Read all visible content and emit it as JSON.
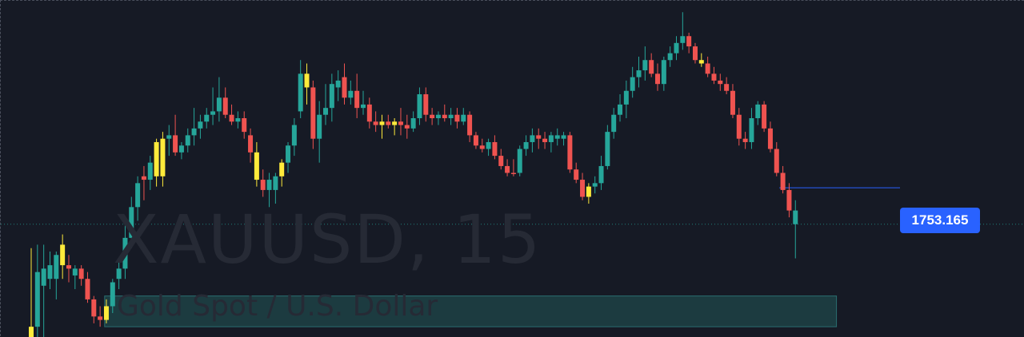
{
  "watermark": {
    "symbol": "XAUUSD, 15",
    "name": "Gold Spot / U.S. Dollar"
  },
  "price_label": "1753.165",
  "colors": {
    "background": "#161a25",
    "up": "#26a69a",
    "down": "#ef5350",
    "highlight": "#ffeb3b",
    "price_line": "#2962ff",
    "zone_fill": "#1c3b40",
    "zone_stroke": "#2a6e70"
  },
  "chart_data": {
    "type": "candlestick",
    "price_label": 1753.165,
    "ylim": [
      1748.8,
      1758.4
    ],
    "candles": [
      {
        "o": 1748.6,
        "h": 1751.4,
        "l": 1748.4,
        "c": 1749.1,
        "col": "highlight"
      },
      {
        "o": 1749.1,
        "h": 1751.5,
        "l": 1748.5,
        "c": 1750.7,
        "col": "up"
      },
      {
        "o": 1750.3,
        "h": 1751.5,
        "l": 1748.8,
        "c": 1750.8,
        "col": "up"
      },
      {
        "o": 1750.5,
        "h": 1751.3,
        "l": 1750.2,
        "c": 1750.9,
        "col": "up"
      },
      {
        "o": 1750.5,
        "h": 1751.3,
        "l": 1749.9,
        "c": 1751.2,
        "col": "up"
      },
      {
        "o": 1751.5,
        "h": 1751.8,
        "l": 1750.5,
        "c": 1750.9,
        "col": "highlight"
      },
      {
        "o": 1750.9,
        "h": 1751.2,
        "l": 1750.4,
        "c": 1750.8,
        "col": "down"
      },
      {
        "o": 1750.6,
        "h": 1750.9,
        "l": 1750.2,
        "c": 1750.8,
        "col": "up"
      },
      {
        "o": 1750.8,
        "h": 1750.9,
        "l": 1750.3,
        "c": 1750.5,
        "col": "down"
      },
      {
        "o": 1750.5,
        "h": 1750.7,
        "l": 1749.8,
        "c": 1749.9,
        "col": "down"
      },
      {
        "o": 1749.9,
        "h": 1750.0,
        "l": 1749.2,
        "c": 1749.4,
        "col": "down"
      },
      {
        "o": 1749.4,
        "h": 1749.7,
        "l": 1749.1,
        "c": 1749.3,
        "col": "down"
      },
      {
        "o": 1749.3,
        "h": 1749.9,
        "l": 1749.2,
        "c": 1749.7,
        "col": "highlight"
      },
      {
        "o": 1749.7,
        "h": 1750.5,
        "l": 1749.5,
        "c": 1750.4,
        "col": "up"
      },
      {
        "o": 1750.5,
        "h": 1751.1,
        "l": 1750.2,
        "c": 1750.8,
        "col": "up"
      },
      {
        "o": 1750.8,
        "h": 1752.1,
        "l": 1750.5,
        "c": 1751.7,
        "col": "up"
      },
      {
        "o": 1751.7,
        "h": 1752.9,
        "l": 1751.4,
        "c": 1752.6,
        "col": "up"
      },
      {
        "o": 1752.6,
        "h": 1753.5,
        "l": 1752.2,
        "c": 1753.3,
        "col": "up"
      },
      {
        "o": 1753.5,
        "h": 1753.8,
        "l": 1752.8,
        "c": 1753.4,
        "col": "down"
      },
      {
        "o": 1753.4,
        "h": 1754.1,
        "l": 1753.1,
        "c": 1753.9,
        "col": "up"
      },
      {
        "o": 1753.5,
        "h": 1754.6,
        "l": 1753.2,
        "c": 1754.5,
        "col": "highlight"
      },
      {
        "o": 1753.5,
        "h": 1754.8,
        "l": 1753.2,
        "c": 1754.6,
        "col": "highlight"
      },
      {
        "o": 1754.6,
        "h": 1755.0,
        "l": 1754.1,
        "c": 1754.7,
        "col": "up"
      },
      {
        "o": 1754.7,
        "h": 1755.3,
        "l": 1754.1,
        "c": 1754.2,
        "col": "down"
      },
      {
        "o": 1754.2,
        "h": 1754.5,
        "l": 1754.0,
        "c": 1754.4,
        "col": "up"
      },
      {
        "o": 1754.4,
        "h": 1754.9,
        "l": 1754.2,
        "c": 1754.7,
        "col": "up"
      },
      {
        "o": 1754.7,
        "h": 1755.5,
        "l": 1754.4,
        "c": 1754.9,
        "col": "up"
      },
      {
        "o": 1754.9,
        "h": 1755.3,
        "l": 1754.6,
        "c": 1755.1,
        "col": "up"
      },
      {
        "o": 1755.1,
        "h": 1755.5,
        "l": 1754.9,
        "c": 1755.3,
        "col": "up"
      },
      {
        "o": 1755.3,
        "h": 1756.1,
        "l": 1755.0,
        "c": 1755.4,
        "col": "up"
      },
      {
        "o": 1755.4,
        "h": 1756.4,
        "l": 1755.1,
        "c": 1755.8,
        "col": "up"
      },
      {
        "o": 1755.8,
        "h": 1756.1,
        "l": 1755.2,
        "c": 1755.3,
        "col": "down"
      },
      {
        "o": 1755.3,
        "h": 1755.6,
        "l": 1755.0,
        "c": 1755.1,
        "col": "down"
      },
      {
        "o": 1755.1,
        "h": 1755.4,
        "l": 1754.9,
        "c": 1755.2,
        "col": "up"
      },
      {
        "o": 1755.2,
        "h": 1755.4,
        "l": 1754.6,
        "c": 1754.8,
        "col": "down"
      },
      {
        "o": 1754.7,
        "h": 1754.9,
        "l": 1753.9,
        "c": 1754.2,
        "col": "down"
      },
      {
        "o": 1754.2,
        "h": 1754.5,
        "l": 1753.2,
        "c": 1753.4,
        "col": "highlight"
      },
      {
        "o": 1753.4,
        "h": 1753.7,
        "l": 1752.9,
        "c": 1753.1,
        "col": "down"
      },
      {
        "o": 1753.1,
        "h": 1753.6,
        "l": 1752.6,
        "c": 1753.4,
        "col": "up"
      },
      {
        "o": 1753.1,
        "h": 1753.6,
        "l": 1752.7,
        "c": 1753.5,
        "col": "up"
      },
      {
        "o": 1753.5,
        "h": 1754.0,
        "l": 1753.2,
        "c": 1753.9,
        "col": "highlight"
      },
      {
        "o": 1753.9,
        "h": 1754.5,
        "l": 1753.6,
        "c": 1754.4,
        "col": "up"
      },
      {
        "o": 1754.4,
        "h": 1755.2,
        "l": 1754.1,
        "c": 1755.0,
        "col": "up"
      },
      {
        "o": 1756.5,
        "h": 1756.9,
        "l": 1755.2,
        "c": 1755.4,
        "col": "up"
      },
      {
        "o": 1756.5,
        "h": 1756.8,
        "l": 1755.6,
        "c": 1756.1,
        "col": "highlight"
      },
      {
        "o": 1756.1,
        "h": 1756.3,
        "l": 1754.3,
        "c": 1754.6,
        "col": "down"
      },
      {
        "o": 1754.6,
        "h": 1755.7,
        "l": 1753.9,
        "c": 1755.3,
        "col": "up"
      },
      {
        "o": 1755.3,
        "h": 1756.2,
        "l": 1755.0,
        "c": 1755.5,
        "col": "up"
      },
      {
        "o": 1755.5,
        "h": 1756.5,
        "l": 1755.1,
        "c": 1756.2,
        "col": "up"
      },
      {
        "o": 1756.1,
        "h": 1756.6,
        "l": 1755.7,
        "c": 1756.3,
        "col": "up"
      },
      {
        "o": 1756.4,
        "h": 1756.8,
        "l": 1755.6,
        "c": 1755.8,
        "col": "down"
      },
      {
        "o": 1755.8,
        "h": 1756.3,
        "l": 1755.6,
        "c": 1756.0,
        "col": "up"
      },
      {
        "o": 1756.0,
        "h": 1756.5,
        "l": 1755.2,
        "c": 1755.5,
        "col": "down"
      },
      {
        "o": 1755.5,
        "h": 1756.0,
        "l": 1755.3,
        "c": 1755.6,
        "col": "up"
      },
      {
        "o": 1755.6,
        "h": 1755.8,
        "l": 1754.9,
        "c": 1755.1,
        "col": "down"
      },
      {
        "o": 1755.1,
        "h": 1755.4,
        "l": 1754.8,
        "c": 1755.0,
        "col": "down"
      },
      {
        "o": 1755.0,
        "h": 1755.3,
        "l": 1754.6,
        "c": 1755.1,
        "col": "highlight"
      },
      {
        "o": 1755.1,
        "h": 1755.3,
        "l": 1754.9,
        "c": 1755.0,
        "col": "down"
      },
      {
        "o": 1755.0,
        "h": 1755.2,
        "l": 1754.7,
        "c": 1755.1,
        "col": "highlight"
      },
      {
        "o": 1755.1,
        "h": 1755.5,
        "l": 1754.7,
        "c": 1755.0,
        "col": "down"
      },
      {
        "o": 1755.0,
        "h": 1755.3,
        "l": 1754.6,
        "c": 1754.9,
        "col": "down"
      },
      {
        "o": 1754.9,
        "h": 1755.4,
        "l": 1754.8,
        "c": 1755.2,
        "col": "up"
      },
      {
        "o": 1755.2,
        "h": 1756.1,
        "l": 1755.0,
        "c": 1755.9,
        "col": "up"
      },
      {
        "o": 1755.9,
        "h": 1756.1,
        "l": 1755.1,
        "c": 1755.3,
        "col": "down"
      },
      {
        "o": 1755.3,
        "h": 1755.5,
        "l": 1755.0,
        "c": 1755.2,
        "col": "down"
      },
      {
        "o": 1755.2,
        "h": 1755.4,
        "l": 1755.0,
        "c": 1755.3,
        "col": "up"
      },
      {
        "o": 1755.3,
        "h": 1755.6,
        "l": 1755.1,
        "c": 1755.2,
        "col": "down"
      },
      {
        "o": 1755.2,
        "h": 1755.5,
        "l": 1755.0,
        "c": 1755.3,
        "col": "up"
      },
      {
        "o": 1755.3,
        "h": 1755.5,
        "l": 1754.9,
        "c": 1755.1,
        "col": "down"
      },
      {
        "o": 1755.1,
        "h": 1755.5,
        "l": 1755.0,
        "c": 1755.3,
        "col": "up"
      },
      {
        "o": 1755.3,
        "h": 1755.4,
        "l": 1754.5,
        "c": 1754.7,
        "col": "down"
      },
      {
        "o": 1754.7,
        "h": 1754.8,
        "l": 1754.3,
        "c": 1754.4,
        "col": "down"
      },
      {
        "o": 1754.4,
        "h": 1754.6,
        "l": 1754.2,
        "c": 1754.3,
        "col": "down"
      },
      {
        "o": 1754.3,
        "h": 1754.6,
        "l": 1754.1,
        "c": 1754.5,
        "col": "up"
      },
      {
        "o": 1754.5,
        "h": 1754.7,
        "l": 1754.0,
        "c": 1754.1,
        "col": "down"
      },
      {
        "o": 1754.1,
        "h": 1754.3,
        "l": 1753.7,
        "c": 1753.8,
        "col": "down"
      },
      {
        "o": 1753.8,
        "h": 1754.0,
        "l": 1753.5,
        "c": 1753.6,
        "col": "down"
      },
      {
        "o": 1753.6,
        "h": 1754.0,
        "l": 1753.5,
        "c": 1753.6,
        "col": "down"
      },
      {
        "o": 1753.6,
        "h": 1754.4,
        "l": 1753.5,
        "c": 1754.3,
        "col": "up"
      },
      {
        "o": 1754.3,
        "h": 1754.7,
        "l": 1754.1,
        "c": 1754.5,
        "col": "up"
      },
      {
        "o": 1754.5,
        "h": 1754.9,
        "l": 1754.2,
        "c": 1754.7,
        "col": "up"
      },
      {
        "o": 1754.7,
        "h": 1754.9,
        "l": 1754.3,
        "c": 1754.6,
        "col": "down"
      },
      {
        "o": 1754.6,
        "h": 1754.8,
        "l": 1754.3,
        "c": 1754.5,
        "col": "down"
      },
      {
        "o": 1754.5,
        "h": 1754.8,
        "l": 1754.2,
        "c": 1754.7,
        "col": "up"
      },
      {
        "o": 1754.7,
        "h": 1754.9,
        "l": 1754.4,
        "c": 1754.6,
        "col": "up"
      },
      {
        "o": 1754.6,
        "h": 1754.8,
        "l": 1754.4,
        "c": 1754.7,
        "col": "up"
      },
      {
        "o": 1754.7,
        "h": 1754.8,
        "l": 1753.6,
        "c": 1753.7,
        "col": "down"
      },
      {
        "o": 1753.7,
        "h": 1753.9,
        "l": 1753.3,
        "c": 1753.4,
        "col": "down"
      },
      {
        "o": 1753.4,
        "h": 1753.6,
        "l": 1752.8,
        "c": 1752.9,
        "col": "down"
      },
      {
        "o": 1752.9,
        "h": 1753.3,
        "l": 1752.7,
        "c": 1753.2,
        "col": "highlight"
      },
      {
        "o": 1753.2,
        "h": 1753.5,
        "l": 1753.0,
        "c": 1753.3,
        "col": "up"
      },
      {
        "o": 1753.3,
        "h": 1754.1,
        "l": 1753.1,
        "c": 1753.8,
        "col": "up"
      },
      {
        "o": 1753.8,
        "h": 1755.0,
        "l": 1753.7,
        "c": 1754.8,
        "col": "up"
      },
      {
        "o": 1754.8,
        "h": 1755.5,
        "l": 1754.6,
        "c": 1755.3,
        "col": "up"
      },
      {
        "o": 1755.3,
        "h": 1755.9,
        "l": 1755.1,
        "c": 1755.6,
        "col": "up"
      },
      {
        "o": 1755.6,
        "h": 1756.3,
        "l": 1755.2,
        "c": 1756.0,
        "col": "up"
      },
      {
        "o": 1756.0,
        "h": 1756.7,
        "l": 1755.8,
        "c": 1756.4,
        "col": "up"
      },
      {
        "o": 1756.4,
        "h": 1757.0,
        "l": 1756.1,
        "c": 1756.6,
        "col": "up"
      },
      {
        "o": 1756.6,
        "h": 1757.3,
        "l": 1756.3,
        "c": 1756.9,
        "col": "up"
      },
      {
        "o": 1756.9,
        "h": 1757.1,
        "l": 1756.4,
        "c": 1756.5,
        "col": "down"
      },
      {
        "o": 1756.5,
        "h": 1756.8,
        "l": 1756.0,
        "c": 1756.2,
        "col": "down"
      },
      {
        "o": 1756.2,
        "h": 1757.0,
        "l": 1756.0,
        "c": 1756.9,
        "col": "up"
      },
      {
        "o": 1756.9,
        "h": 1757.3,
        "l": 1756.7,
        "c": 1757.1,
        "col": "up"
      },
      {
        "o": 1757.1,
        "h": 1757.6,
        "l": 1756.9,
        "c": 1757.4,
        "col": "up"
      },
      {
        "o": 1757.4,
        "h": 1758.3,
        "l": 1757.2,
        "c": 1757.6,
        "col": "up"
      },
      {
        "o": 1757.6,
        "h": 1757.7,
        "l": 1757.1,
        "c": 1757.3,
        "col": "down"
      },
      {
        "o": 1757.3,
        "h": 1757.4,
        "l": 1756.8,
        "c": 1756.9,
        "col": "down"
      },
      {
        "o": 1756.9,
        "h": 1757.1,
        "l": 1756.7,
        "c": 1756.8,
        "col": "highlight"
      },
      {
        "o": 1756.8,
        "h": 1757.0,
        "l": 1756.4,
        "c": 1756.5,
        "col": "down"
      },
      {
        "o": 1756.5,
        "h": 1756.7,
        "l": 1756.2,
        "c": 1756.3,
        "col": "down"
      },
      {
        "o": 1756.3,
        "h": 1756.5,
        "l": 1756.0,
        "c": 1756.2,
        "col": "down"
      },
      {
        "o": 1756.2,
        "h": 1756.4,
        "l": 1755.9,
        "c": 1756.0,
        "col": "down"
      },
      {
        "o": 1756.0,
        "h": 1756.2,
        "l": 1755.2,
        "c": 1755.3,
        "col": "down"
      },
      {
        "o": 1755.3,
        "h": 1755.5,
        "l": 1754.4,
        "c": 1754.6,
        "col": "down"
      },
      {
        "o": 1754.6,
        "h": 1754.8,
        "l": 1754.3,
        "c": 1754.5,
        "col": "down"
      },
      {
        "o": 1754.5,
        "h": 1755.5,
        "l": 1754.3,
        "c": 1755.2,
        "col": "up"
      },
      {
        "o": 1755.2,
        "h": 1755.7,
        "l": 1755.0,
        "c": 1755.6,
        "col": "up"
      },
      {
        "o": 1755.6,
        "h": 1755.7,
        "l": 1754.8,
        "c": 1754.9,
        "col": "down"
      },
      {
        "o": 1754.9,
        "h": 1755.1,
        "l": 1754.2,
        "c": 1754.3,
        "col": "down"
      },
      {
        "o": 1754.3,
        "h": 1754.5,
        "l": 1753.5,
        "c": 1753.6,
        "col": "down"
      },
      {
        "o": 1753.6,
        "h": 1753.8,
        "l": 1753.0,
        "c": 1753.1,
        "col": "down"
      },
      {
        "o": 1753.1,
        "h": 1753.3,
        "l": 1752.3,
        "c": 1752.5,
        "col": "down"
      },
      {
        "o": 1752.5,
        "h": 1752.8,
        "l": 1751.1,
        "c": 1752.1,
        "col": "up"
      }
    ],
    "zone": {
      "x_start_index": 13,
      "x_end_index": 126,
      "y_top": 1750.0,
      "y_bottom": 1749.1
    }
  }
}
